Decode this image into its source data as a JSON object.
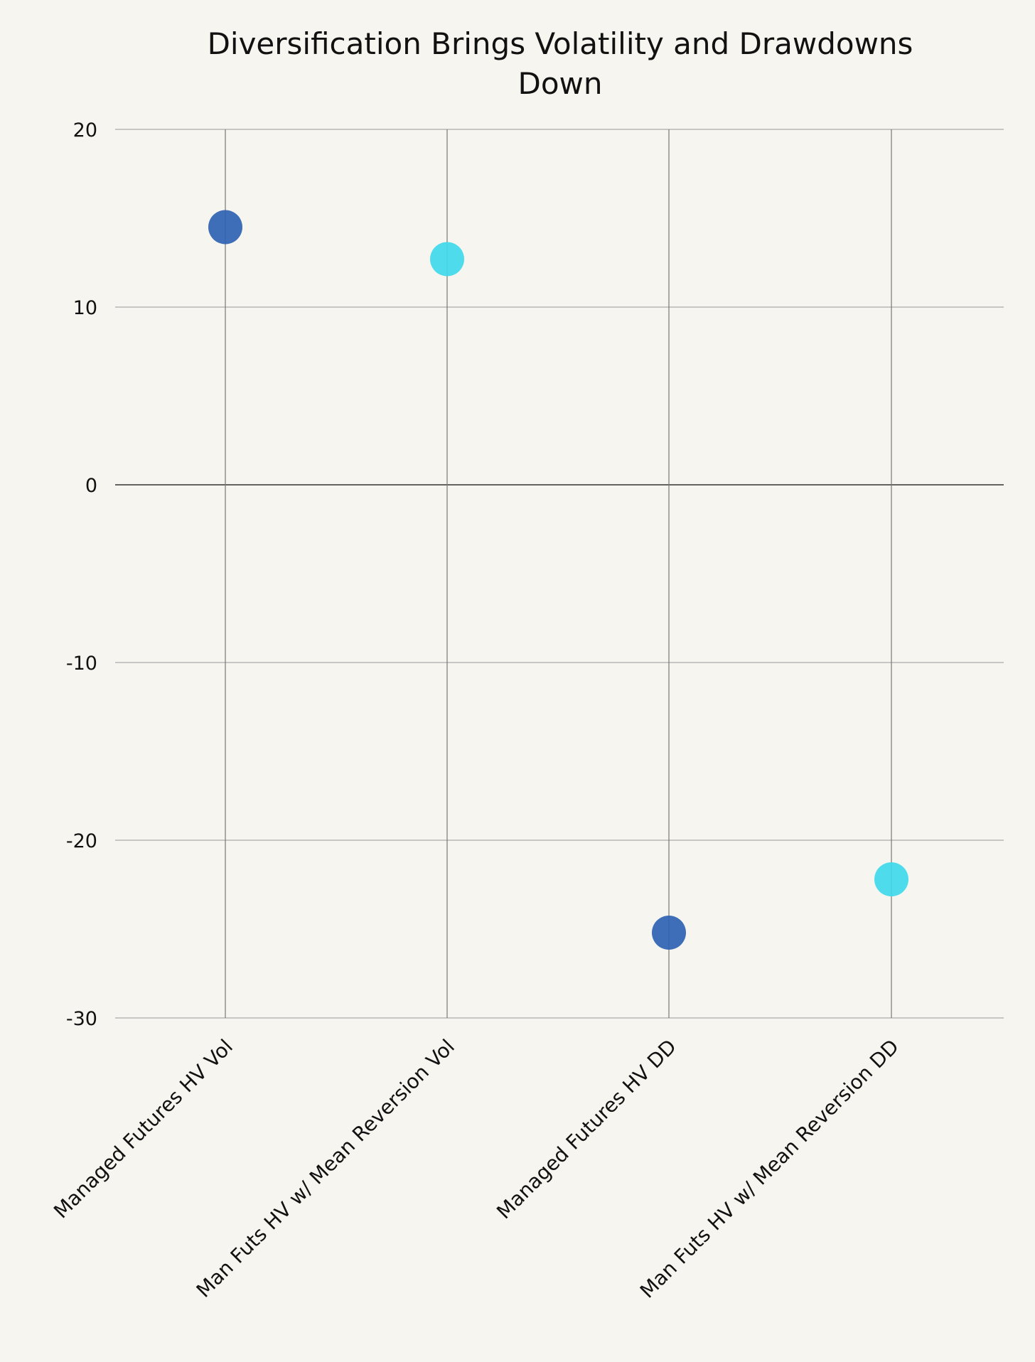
{
  "chart_data": {
    "type": "scatter",
    "title": "Diversification Brings Volatility and Drawdowns Down",
    "title_lines": [
      "Diversification Brings Volatility and Drawdowns",
      "Down"
    ],
    "xlabel": "",
    "ylabel": "",
    "categories": [
      "Managed Futures HV Vol",
      "Man Futs HV w/ Mean Reversion Vol",
      "Managed Futures HV DD",
      "Man Futs HV w/ Mean Reversion DD"
    ],
    "values": [
      14.5,
      12.7,
      -25.2,
      -22.2
    ],
    "point_colors": [
      "#2f62b3",
      "#3fd9ec"
    ],
    "ylim": [
      -30,
      20
    ],
    "yticks": [
      20,
      10,
      0,
      -10,
      -20,
      -30
    ],
    "grid": true,
    "legend": "none"
  }
}
